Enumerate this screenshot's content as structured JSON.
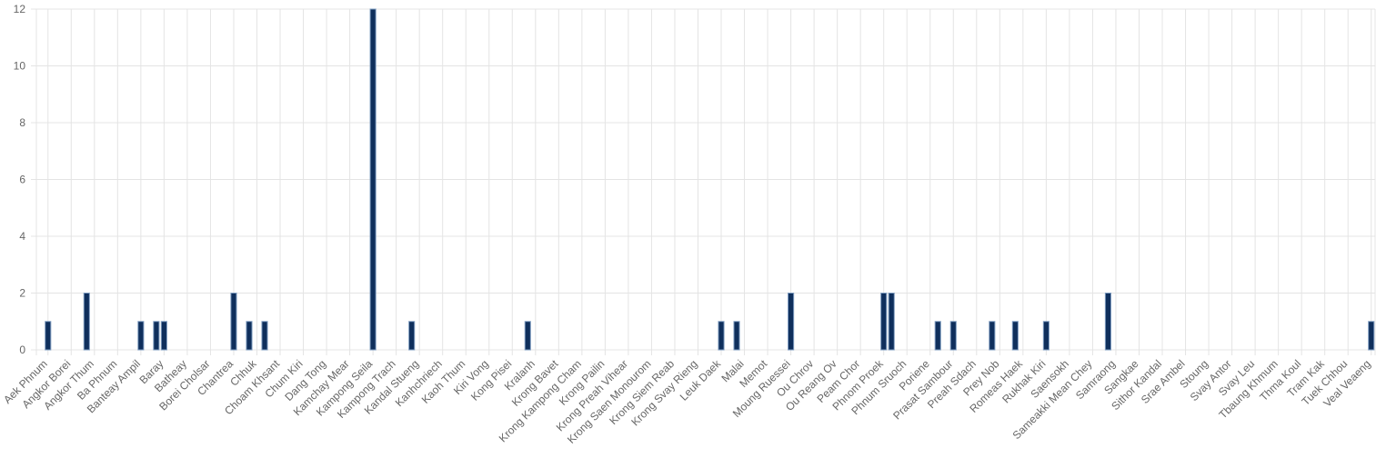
{
  "chart_data": {
    "type": "bar",
    "categories": [
      null,
      "Aek Phnum",
      null,
      null,
      "Angkor Borei",
      null,
      null,
      "Angkor Thum",
      null,
      null,
      "Ba Phnum",
      null,
      null,
      "Banteay Ampil",
      null,
      null,
      "Baray",
      null,
      null,
      "Batheay",
      null,
      null,
      "Borei Cholsar",
      null,
      null,
      "Chantrea",
      null,
      null,
      "Chhuk",
      null,
      null,
      "Choam Khsant",
      null,
      null,
      "Chum Kiri",
      null,
      null,
      "Dang Tong",
      null,
      null,
      "Kamchay Mear",
      null,
      null,
      "Kampong Seila",
      null,
      null,
      "Kampong Trach",
      null,
      null,
      "Kandal Stueng",
      null,
      null,
      "Kanhchriech",
      null,
      null,
      "Kaoh Thum",
      null,
      null,
      "Kiri Vong",
      null,
      null,
      "Kong Pisei",
      null,
      null,
      "Kralanh",
      null,
      null,
      "Krong Bavet",
      null,
      null,
      "Krong Kampong Cham",
      null,
      null,
      "Krong Pailin",
      null,
      null,
      "Krong Preah Vihear",
      null,
      null,
      "Krong Saen Monourom",
      null,
      null,
      "Krong Siem Reab",
      null,
      null,
      "Krong Svay Rieng",
      null,
      null,
      "Leuk Daek",
      null,
      null,
      "Malai",
      null,
      null,
      "Memot",
      null,
      null,
      "Moung Ruessei",
      null,
      null,
      "Ou Chrov",
      null,
      null,
      "Ou Reang Ov",
      null,
      null,
      "Peam Chor",
      null,
      null,
      "Phnom Proek",
      null,
      null,
      "Phnum Sruoch",
      null,
      null,
      "Poriene",
      null,
      null,
      "Prasat Sambour",
      null,
      null,
      "Preah Sdach",
      null,
      null,
      "Prey Nob",
      null,
      null,
      "Romeas Haek",
      null,
      null,
      "Rukhak Kiri",
      null,
      null,
      "Saensokh",
      null,
      null,
      "Sameakki Mean Chey",
      null,
      null,
      "Samraong",
      null,
      null,
      "Sangkae",
      null,
      null,
      "Sithor Kandal",
      null,
      null,
      "Srae Ambel",
      null,
      null,
      "Stoung",
      null,
      null,
      "Svay Antor",
      null,
      null,
      "Svay Leu",
      null,
      null,
      "Tbaung Khmum",
      null,
      null,
      "Thma Koul",
      null,
      null,
      "Tram Kak",
      null,
      null,
      "Tuek Chhou",
      null,
      null,
      "Veal Veaeng"
    ],
    "values": [
      0,
      1,
      0,
      0,
      0,
      0,
      2,
      0,
      0,
      0,
      0,
      0,
      0,
      1,
      0,
      1,
      1,
      0,
      0,
      0,
      0,
      0,
      0,
      0,
      0,
      2,
      0,
      1,
      0,
      1,
      0,
      0,
      0,
      0,
      0,
      0,
      0,
      0,
      0,
      0,
      0,
      0,
      0,
      12,
      0,
      0,
      0,
      0,
      1,
      0,
      0,
      0,
      0,
      0,
      0,
      0,
      0,
      0,
      0,
      0,
      0,
      0,
      0,
      1,
      0,
      0,
      0,
      0,
      0,
      0,
      0,
      0,
      0,
      0,
      0,
      0,
      0,
      0,
      0,
      0,
      0,
      0,
      0,
      0,
      0,
      0,
      0,
      0,
      1,
      0,
      1,
      0,
      0,
      0,
      0,
      0,
      0,
      2,
      0,
      0,
      0,
      0,
      0,
      0,
      0,
      0,
      0,
      0,
      0,
      2,
      2,
      0,
      0,
      0,
      0,
      0,
      1,
      0,
      1,
      0,
      0,
      0,
      0,
      1,
      0,
      0,
      1,
      0,
      0,
      0,
      1,
      0,
      0,
      0,
      0,
      0,
      0,
      0,
      2,
      0,
      0,
      0,
      0,
      0,
      0,
      0,
      0,
      0,
      0,
      0,
      0,
      0,
      0,
      0,
      0,
      0,
      0,
      0,
      0,
      0,
      0,
      0,
      0,
      0,
      0,
      0,
      0,
      0,
      0,
      0,
      0,
      0,
      1
    ],
    "color": "#0f2f5c",
    "border_color": "#7e9cc0",
    "ylim": [
      0,
      12
    ],
    "yticks": [
      0,
      2,
      4,
      6,
      8,
      10,
      12
    ],
    "grid": true
  }
}
